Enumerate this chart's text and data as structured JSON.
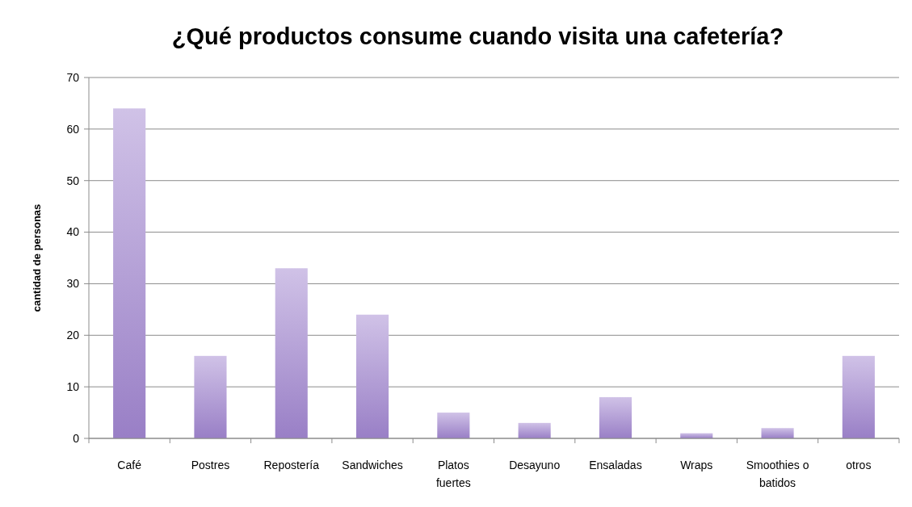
{
  "chart_data": {
    "type": "bar",
    "title": "¿Qué productos consume cuando visita una cafetería?",
    "ylabel": "cantidad de personas",
    "categories": [
      "Café",
      "Postres",
      "Repostería",
      "Sandwiches",
      "Platos fuertes",
      "Desayuno",
      "Ensaladas",
      "Wraps",
      "Smoothies o batidos",
      "otros"
    ],
    "values": [
      64,
      16,
      33,
      24,
      5,
      3,
      8,
      1,
      2,
      16
    ],
    "color": "#a990d4",
    "ylim": [
      0,
      70
    ],
    "yticks": [
      0,
      10,
      20,
      30,
      40,
      50,
      60,
      70
    ],
    "grid": "y"
  }
}
